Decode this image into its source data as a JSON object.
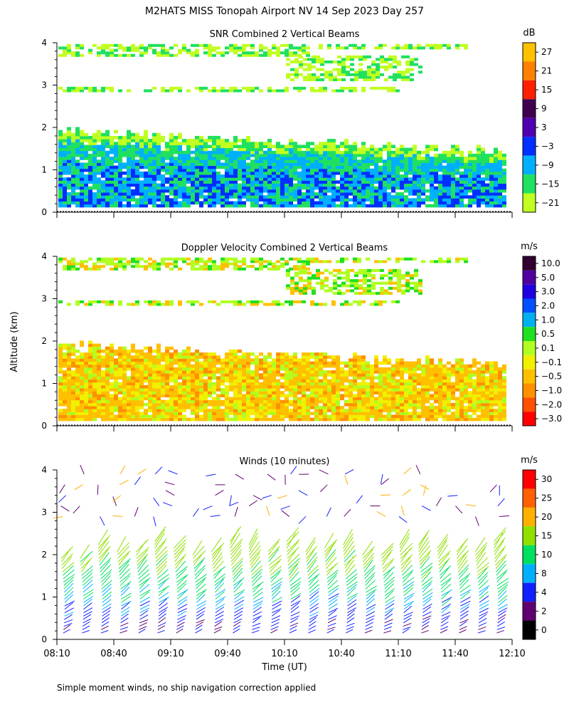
{
  "figure": {
    "title": "M2HATS MISS Tonopah Airport NV  14 Sep 2023 Day 257",
    "ylabel": "Altitude (km)",
    "xlabel": "Time (UT)",
    "footnote": "Simple moment winds, no ship navigation correction applied",
    "x_ticks": [
      "08:10",
      "08:40",
      "09:10",
      "09:40",
      "10:10",
      "10:40",
      "11:10",
      "11:40",
      "12:10"
    ]
  },
  "chart_data": [
    {
      "type": "heatmap",
      "title": "SNR Combined 2 Vertical Beams",
      "xlabel": "Time (UT)",
      "ylabel": "Altitude (km)",
      "xlim": [
        "08:10",
        "12:10"
      ],
      "ylim": [
        0,
        4
      ],
      "y_ticks": [
        "0",
        "1",
        "2",
        "3",
        "4"
      ],
      "colorbar": {
        "unit": "dB",
        "labels": [
          "27",
          "21",
          "15",
          "9",
          "3",
          "−3",
          "−9",
          "−15",
          "−21"
        ],
        "colors": [
          "#ffc000",
          "#ff8000",
          "#ff2000",
          "#400050",
          "#5000b0",
          "#0030ff",
          "#00b0ff",
          "#20e060",
          "#c0ff20"
        ]
      },
      "regions": [
        {
          "t_start": 0,
          "t_end": 240,
          "alt_low": 0.1,
          "alt_high": 1.9,
          "dominant": "-9 to 3 dB"
        },
        {
          "t_start": 0,
          "t_end": 240,
          "alt_low": 2.8,
          "alt_high": 4.0,
          "dominant": "-21 to -15 dB"
        }
      ]
    },
    {
      "type": "heatmap",
      "title": "Doppler Velocity Combined 2 Vertical Beams",
      "xlabel": "Time (UT)",
      "ylabel": "Altitude (km)",
      "xlim": [
        "08:10",
        "12:10"
      ],
      "ylim": [
        0,
        4
      ],
      "y_ticks": [
        "0",
        "1",
        "2",
        "3",
        "4"
      ],
      "colorbar": {
        "unit": "m/s",
        "labels": [
          "10.0",
          "5.0",
          "3.0",
          "2.0",
          "1.0",
          "0.5",
          "0.1",
          "−0.1",
          "−0.5",
          "−1.0",
          "−2.0",
          "−3.0"
        ],
        "colors": [
          "#300030",
          "#5000a0",
          "#2000e0",
          "#0050ff",
          "#00b0f0",
          "#20e020",
          "#b0ff20",
          "#f0f000",
          "#ffc000",
          "#ff9000",
          "#ff5000",
          "#ff0000"
        ]
      },
      "regions": [
        {
          "t_start": 0,
          "t_end": 240,
          "alt_low": 0.1,
          "alt_high": 1.9,
          "dominant": "-0.5 to -0.1 m/s"
        },
        {
          "t_start": 0,
          "t_end": 240,
          "alt_low": 2.8,
          "alt_high": 4.0,
          "dominant": "-0.1 to 0.5 m/s"
        }
      ]
    },
    {
      "type": "scatter",
      "title": "Winds (10 minutes)",
      "xlabel": "Time (UT)",
      "ylabel": "Altitude (km)",
      "xlim": [
        "08:10",
        "12:10"
      ],
      "ylim": [
        0,
        4
      ],
      "y_ticks": [
        "0",
        "1",
        "2",
        "3",
        "4"
      ],
      "colorbar": {
        "unit": "m/s",
        "labels": [
          "30",
          "25",
          "20",
          "15",
          "10",
          "8",
          "4",
          "2",
          "0"
        ],
        "colors": [
          "#ff0000",
          "#ff6000",
          "#ffb000",
          "#90e000",
          "#00e060",
          "#00b0ff",
          "#1020ff",
          "#600070",
          "#000000"
        ]
      },
      "profiles_every_minutes": 10,
      "altitude_range_km": [
        0.1,
        4.0
      ]
    }
  ]
}
